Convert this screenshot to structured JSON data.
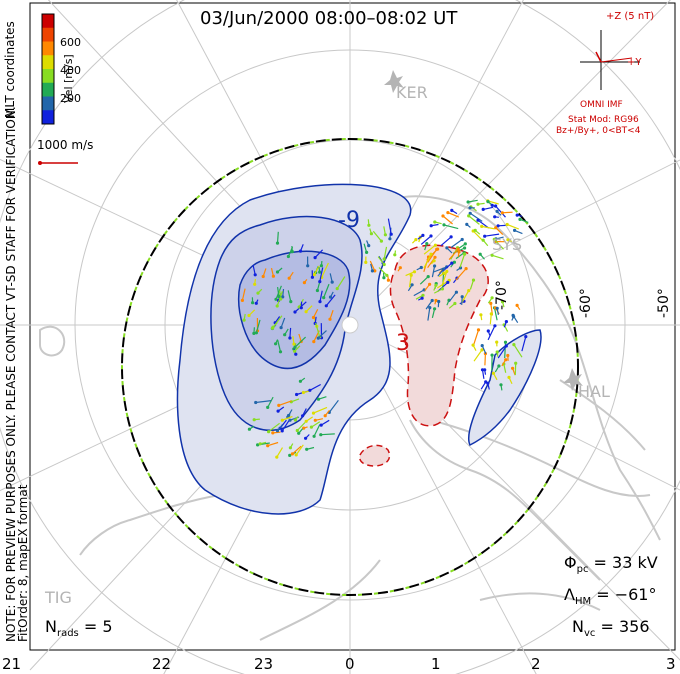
{
  "title": "03/Jun/2000 08:00–08:02 UT",
  "notes": {
    "line1": "NOTE: FOR PREVIEW PURPOSES ONLY. PLEASE CONTACT VT-SD STAFF FOR VERIFICATION.",
    "line2": "FitOrder: 8, mapEX format",
    "coords": "MLT coordinates"
  },
  "colorbar": {
    "label": "Vel [m/s]",
    "ticks": [
      "600",
      "400",
      "200"
    ],
    "colors": [
      "#cc0000",
      "#ee4400",
      "#ff8800",
      "#dddd00",
      "#88dd22",
      "#22aa55",
      "#2266aa",
      "#1122dd"
    ]
  },
  "vector_scale": {
    "label": "1000 m/s",
    "color": "#cc0000"
  },
  "imf": {
    "z_label": "+Z (5 nT)",
    "y_label": "+Y",
    "source": "OMNI IMF",
    "model": "Stat Mod: RG96",
    "condition": "Bz+/By+, 0<BT<4",
    "color": "#cc0000"
  },
  "contours": {
    "neg_label": "-9",
    "pos_label": "3",
    "neg_color": "#1133aa",
    "pos_color": "#cc1111"
  },
  "lat_labels": [
    "-70°",
    "-60°",
    "-50°"
  ],
  "sites": [
    "KER",
    "SYS",
    "HAL",
    "TIG"
  ],
  "stats": {
    "phi_symbol": "Φ",
    "phi_sub": "pc",
    "phi_value": "= 33 kV",
    "lambda_symbol": "Λ",
    "lambda_sub": "HM",
    "lambda_value": "= −61°",
    "nvc_symbol": "N",
    "nvc_sub": "vc",
    "nvc_value": "= 356",
    "nrads_symbol": "N",
    "nrads_sub": "rads",
    "nrads_value": "= 5"
  },
  "mlt_labels": [
    "21",
    "22",
    "23",
    "0",
    "1",
    "2",
    "3"
  ]
}
